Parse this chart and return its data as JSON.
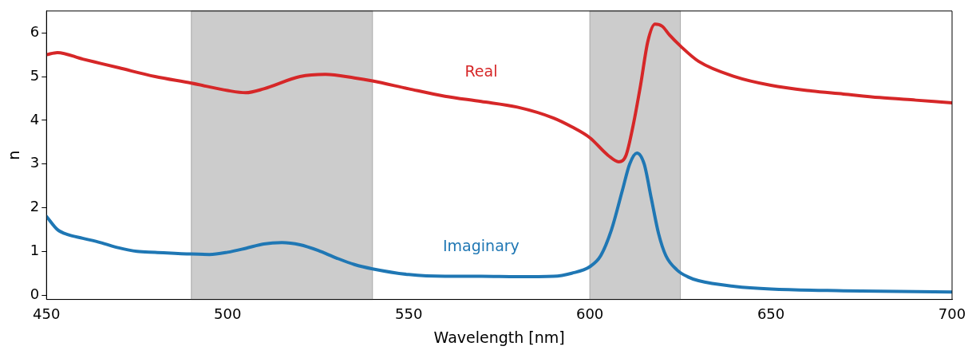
{
  "chart_data": {
    "type": "line",
    "xlabel": "Wavelength [nm]",
    "ylabel": "n",
    "xlim": [
      450,
      700
    ],
    "xticks": [
      450,
      500,
      550,
      600,
      650,
      700
    ],
    "ylim": [
      -0.1,
      6.5
    ],
    "yticks": [
      0,
      1,
      2,
      3,
      4,
      5,
      6
    ],
    "grid": false,
    "legend": false,
    "marker": "none",
    "line_style": "solid",
    "bands": [
      {
        "axis": "x",
        "from": 490,
        "to": 540,
        "color": "#cccccc"
      },
      {
        "axis": "x",
        "from": 600,
        "to": 625,
        "color": "#cccccc"
      }
    ],
    "series": [
      {
        "name": "Real",
        "color": "#d62728",
        "x": [
          450,
          453,
          460,
          465,
          470,
          480,
          490,
          500,
          505,
          510,
          520,
          527,
          535,
          540,
          550,
          560,
          570,
          580,
          590,
          595,
          600,
          605,
          608,
          610,
          612,
          614,
          616,
          618,
          620,
          622,
          625,
          630,
          640,
          650,
          660,
          670,
          680,
          690,
          700
        ],
        "values": [
          5.5,
          5.55,
          5.4,
          5.3,
          5.2,
          5.0,
          4.85,
          4.68,
          4.63,
          4.72,
          5.0,
          5.05,
          4.97,
          4.9,
          4.72,
          4.55,
          4.43,
          4.3,
          4.05,
          3.85,
          3.6,
          3.2,
          3.05,
          3.2,
          3.9,
          4.8,
          5.8,
          6.2,
          6.15,
          5.95,
          5.7,
          5.35,
          5.0,
          4.8,
          4.68,
          4.6,
          4.52,
          4.46,
          4.4
        ]
      },
      {
        "name": "Imaginary",
        "color": "#1f77b4",
        "x": [
          450,
          453,
          456,
          460,
          465,
          470,
          475,
          480,
          490,
          495,
          500,
          505,
          510,
          515,
          520,
          525,
          530,
          535,
          540,
          550,
          560,
          570,
          580,
          590,
          595,
          600,
          603,
          606,
          609,
          611,
          613,
          615,
          617,
          619,
          621,
          624,
          627,
          630,
          640,
          650,
          670,
          700
        ],
        "values": [
          1.8,
          1.5,
          1.38,
          1.3,
          1.2,
          1.08,
          1.0,
          0.98,
          0.94,
          0.93,
          0.98,
          1.07,
          1.17,
          1.2,
          1.15,
          1.02,
          0.85,
          0.7,
          0.6,
          0.47,
          0.43,
          0.43,
          0.42,
          0.43,
          0.5,
          0.65,
          0.9,
          1.5,
          2.4,
          3.0,
          3.25,
          3.0,
          2.2,
          1.4,
          0.9,
          0.58,
          0.42,
          0.33,
          0.2,
          0.14,
          0.1,
          0.07
        ]
      }
    ]
  }
}
